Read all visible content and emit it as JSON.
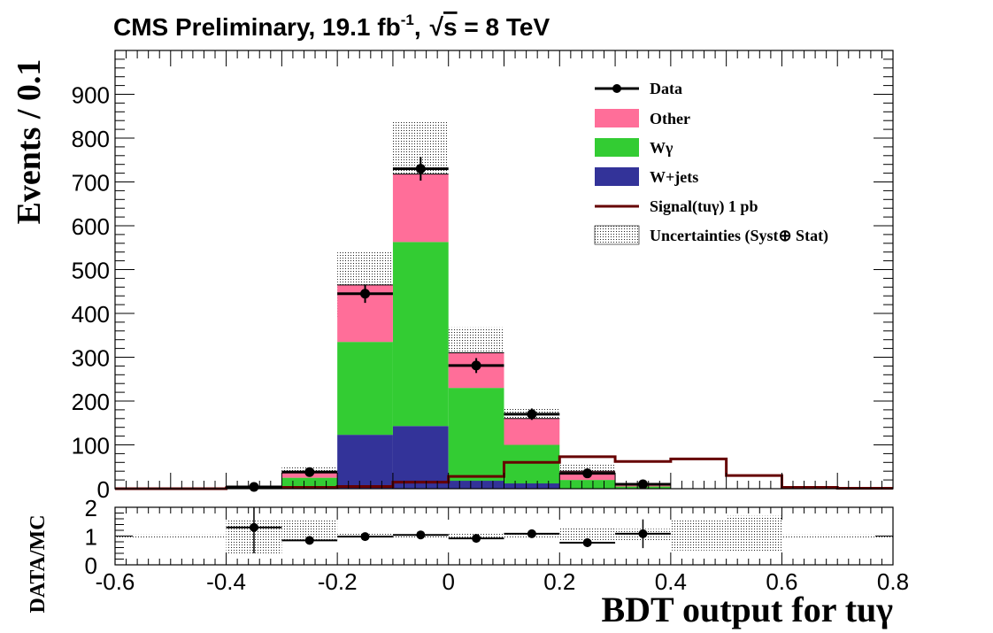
{
  "header": {
    "experiment": "CMS Preliminary, 19.1 fb",
    "lumi_sup": "-1",
    "energy_comma": ",",
    "sqrt": "√",
    "energy_s": "s",
    "energy_rest": " = 8 TeV"
  },
  "colors": {
    "other": "#ff6e99",
    "wgamma": "#33cc33",
    "wjets": "#333399",
    "signal": "#660000",
    "data": "#000000"
  },
  "chart_data": [
    {
      "type": "bar",
      "stacked": true,
      "x_bin_edges": [
        -0.6,
        -0.5,
        -0.4,
        -0.3,
        -0.2,
        -0.1,
        0.0,
        0.1,
        0.2,
        0.3,
        0.4,
        0.5,
        0.6,
        0.7,
        0.8
      ],
      "xlim": [
        -0.6,
        0.8
      ],
      "ylim": [
        0,
        1000
      ],
      "yticks": [
        0,
        100,
        200,
        300,
        400,
        500,
        600,
        700,
        800,
        900
      ],
      "ylabel": "Events / 0.1",
      "series": [
        {
          "name": "W+jets",
          "key": "wjets",
          "values": [
            0,
            0,
            0,
            0,
            123,
            143,
            0,
            0,
            0,
            0,
            0,
            0,
            0,
            0
          ]
        },
        {
          "name": "Wγ",
          "key": "wgamma",
          "values": [
            0,
            0,
            0,
            25,
            212,
            420,
            230,
            100,
            20,
            5,
            0,
            0,
            0,
            0
          ]
        },
        {
          "name": "Other",
          "key": "other",
          "values": [
            0,
            0,
            0,
            15,
            130,
            155,
            80,
            60,
            20,
            3,
            0,
            0,
            0,
            0
          ]
        }
      ],
      "wjets_low_values": [
        0,
        0,
        0,
        0,
        0,
        0,
        18,
        12,
        0,
        0,
        0,
        0,
        0,
        0
      ],
      "uncertainty_band": {
        "name": "Uncertainties (Syst⊕ Stat)",
        "low": [
          0,
          0,
          0,
          35,
          390,
          640,
          265,
          135,
          35,
          5,
          0,
          0,
          0,
          0
        ],
        "high": [
          0,
          0,
          0,
          50,
          540,
          840,
          368,
          185,
          55,
          15,
          0,
          0,
          0,
          0
        ]
      },
      "signal": {
        "name": "Signal(tuγ) 1 pb",
        "values": [
          0,
          0,
          2,
          3,
          5,
          15,
          28,
          60,
          73,
          62,
          68,
          30,
          3,
          1
        ]
      },
      "data_points": {
        "name": "Data",
        "x": [
          -0.35,
          -0.25,
          -0.15,
          -0.05,
          0.05,
          0.15,
          0.25,
          0.35
        ],
        "y": [
          4,
          38,
          445,
          730,
          281,
          170,
          35,
          10
        ],
        "err": [
          2,
          6,
          21,
          27,
          17,
          13,
          6,
          3
        ]
      },
      "legend": {
        "position": "top-right",
        "entries": [
          "Data",
          "Other",
          "Wγ",
          "W+jets",
          "Signal(tuγ) 1 pb",
          "Uncertainties (Syst⊕ Stat)"
        ]
      }
    },
    {
      "type": "scatter",
      "role": "ratio",
      "xlim": [
        -0.6,
        0.8
      ],
      "ylim": [
        0,
        2
      ],
      "yticks": [
        "0",
        "1",
        "2"
      ],
      "ylabel": "DATA/MC",
      "xticks": [
        "-0.6",
        "-0.4",
        "-0.2",
        "0",
        "0.2",
        "0.4",
        "0.6",
        "0.8"
      ],
      "xlabel": "BDT output for tuγ",
      "x": [
        -0.35,
        -0.25,
        -0.15,
        -0.05,
        0.05,
        0.15,
        0.25,
        0.35
      ],
      "y": [
        1.3,
        0.85,
        0.98,
        1.04,
        0.92,
        1.08,
        0.77,
        1.08
      ],
      "err": [
        0.9,
        0.1,
        0.06,
        0.06,
        0.07,
        0.09,
        0.15,
        0.5
      ],
      "band_low": [
        0.95,
        0.95,
        0.4,
        0.8,
        0.95,
        0.9,
        0.9,
        0.9,
        0.75,
        0.8,
        0.5,
        0.45,
        0.95,
        0.95
      ],
      "band_high": [
        1.05,
        1.05,
        1.6,
        1.55,
        1.1,
        1.05,
        1.1,
        1.1,
        1.3,
        1.25,
        1.55,
        1.7,
        1.05,
        1.05
      ]
    }
  ]
}
